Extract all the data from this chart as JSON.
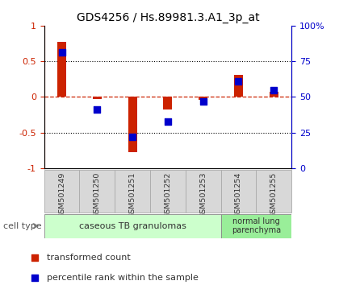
{
  "title": "GDS4256 / Hs.89981.3.A1_3p_at",
  "samples": [
    "GSM501249",
    "GSM501250",
    "GSM501251",
    "GSM501252",
    "GSM501253",
    "GSM501254",
    "GSM501255"
  ],
  "transformed_count": [
    0.77,
    -0.03,
    -0.78,
    -0.18,
    -0.04,
    0.31,
    0.07
  ],
  "percentile_rank": [
    0.62,
    -0.18,
    -0.56,
    -0.35,
    -0.06,
    0.22,
    0.1
  ],
  "red_color": "#cc2200",
  "blue_color": "#0000cc",
  "dashed_line_color": "#cc2200",
  "dot_line_color": "#000000",
  "ylim_left": [
    -1.0,
    1.0
  ],
  "ylim_right": [
    0,
    100
  ],
  "yticks_left": [
    -1.0,
    -0.5,
    0.0,
    0.5,
    1.0
  ],
  "ytick_labels_left": [
    "-1",
    "-0.5",
    "0",
    "0.5",
    "1"
  ],
  "yticks_right": [
    0,
    25,
    50,
    75,
    100
  ],
  "ytick_labels_right": [
    "0",
    "25",
    "50",
    "75",
    "100%"
  ],
  "group1_label": "caseous TB granulomas",
  "group2_label": "normal lung\nparenchyma",
  "group1_color": "#ccffcc",
  "group2_color": "#99ee99",
  "cell_type_label": "cell type",
  "legend_red": "transformed count",
  "legend_blue": "percentile rank within the sample",
  "bar_width": 0.25,
  "sample_box_color": "#d8d8d8",
  "sample_box_edge": "#aaaaaa",
  "bg_color": "#ffffff"
}
